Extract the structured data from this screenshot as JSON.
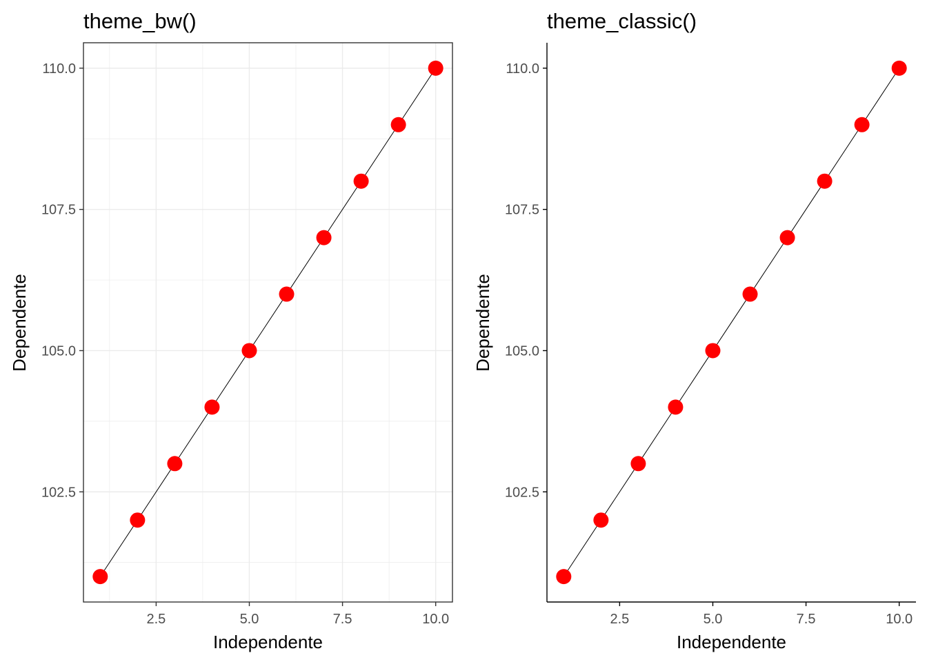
{
  "chart_data": [
    {
      "type": "line",
      "theme": "bw",
      "title": "theme_bw()",
      "xlabel": "Independente",
      "ylabel": "Dependente",
      "xlim": [
        0.55,
        10.45
      ],
      "ylim": [
        100.55,
        110.45
      ],
      "grid": true,
      "panel_border": true,
      "x_ticks": [
        2.5,
        5.0,
        7.5,
        10.0
      ],
      "x_tick_labels": [
        "2.5",
        "5.0",
        "7.5",
        "10.0"
      ],
      "y_ticks": [
        102.5,
        105.0,
        107.5,
        110.0
      ],
      "y_tick_labels": [
        "102.5",
        "105.0",
        "107.5",
        "110.0"
      ],
      "x_minor": [
        1.25,
        3.75,
        6.25,
        8.75
      ],
      "y_minor": [
        101.25,
        103.75,
        106.25,
        108.75
      ],
      "series": [
        {
          "x": [
            1,
            2,
            3,
            4,
            5,
            6,
            7,
            8,
            9,
            10
          ],
          "y": [
            101,
            102,
            103,
            104,
            105,
            106,
            107,
            108,
            109,
            110
          ],
          "line_color": "#000000",
          "point_color": "#ff0000"
        }
      ]
    },
    {
      "type": "line",
      "theme": "classic",
      "title": "theme_classic()",
      "xlabel": "Independente",
      "ylabel": "Dependente",
      "xlim": [
        0.55,
        10.45
      ],
      "ylim": [
        100.55,
        110.45
      ],
      "grid": false,
      "panel_border": false,
      "x_ticks": [
        2.5,
        5.0,
        7.5,
        10.0
      ],
      "x_tick_labels": [
        "2.5",
        "5.0",
        "7.5",
        "10.0"
      ],
      "y_ticks": [
        102.5,
        105.0,
        107.5,
        110.0
      ],
      "y_tick_labels": [
        "102.5",
        "105.0",
        "107.5",
        "110.0"
      ],
      "series": [
        {
          "x": [
            1,
            2,
            3,
            4,
            5,
            6,
            7,
            8,
            9,
            10
          ],
          "y": [
            101,
            102,
            103,
            104,
            105,
            106,
            107,
            108,
            109,
            110
          ],
          "line_color": "#000000",
          "point_color": "#ff0000"
        }
      ]
    }
  ]
}
